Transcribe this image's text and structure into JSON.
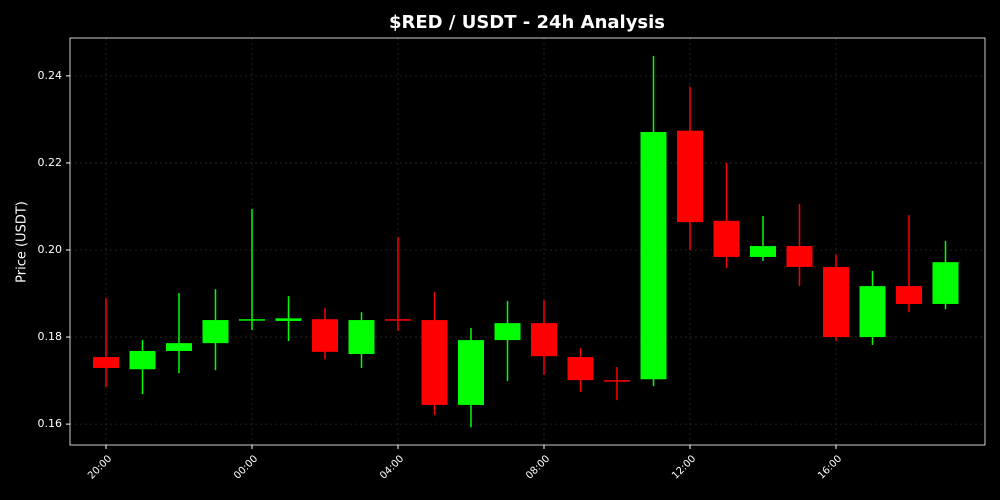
{
  "chart_data": {
    "type": "candlestick",
    "title": "$RED / USDT - 24h Analysis",
    "y_label": "Price (USDT)",
    "categories": [
      "20:00",
      null,
      null,
      null,
      "00:00",
      null,
      null,
      null,
      "04:00",
      null,
      null,
      null,
      "08:00",
      null,
      null,
      null,
      "12:00",
      null,
      null,
      null,
      "16:00",
      null,
      null,
      null
    ],
    "open": [
      0.1754,
      0.1726,
      0.1768,
      0.1786,
      0.1839,
      0.1837,
      0.1841,
      0.1761,
      0.1841,
      0.1839,
      0.1644,
      0.1793,
      0.1832,
      0.1754,
      0.1701,
      0.1703,
      0.2274,
      0.2067,
      0.1984,
      0.2009,
      0.1961,
      0.18,
      0.1917,
      0.1876
    ],
    "high": [
      0.189,
      0.1793,
      0.1901,
      0.191,
      0.2094,
      0.1894,
      0.1867,
      0.1857,
      0.203,
      0.1903,
      0.1821,
      0.1883,
      0.1885,
      0.1775,
      0.1731,
      0.2446,
      0.2375,
      0.22,
      0.2078,
      0.2106,
      0.1989,
      0.1952,
      0.208,
      0.2021
    ],
    "low": [
      0.1685,
      0.1669,
      0.1717,
      0.1724,
      0.1816,
      0.1791,
      0.1749,
      0.1729,
      0.1814,
      0.1621,
      0.1593,
      0.1699,
      0.1713,
      0.1674,
      0.1655,
      0.1687,
      0.2,
      0.1959,
      0.1975,
      0.1917,
      0.1791,
      0.1782,
      0.1857,
      0.1864
    ],
    "close": [
      0.1729,
      0.1768,
      0.1786,
      0.1839,
      0.1841,
      0.1843,
      0.1766,
      0.1839,
      0.1839,
      0.1644,
      0.1793,
      0.1832,
      0.1756,
      0.1701,
      0.1699,
      0.2271,
      0.2064,
      0.1984,
      0.2009,
      0.1961,
      0.18,
      0.1917,
      0.1876,
      0.1972
    ],
    "up_color": "#00ff00",
    "down_color": "#ff0000",
    "ylim": [
      0.1552,
      0.2487
    ],
    "yticks": [
      0.16,
      0.18,
      {
        "value": 0.2,
        "label": "0.20"
      },
      0.22,
      0.24
    ],
    "grid": true
  }
}
